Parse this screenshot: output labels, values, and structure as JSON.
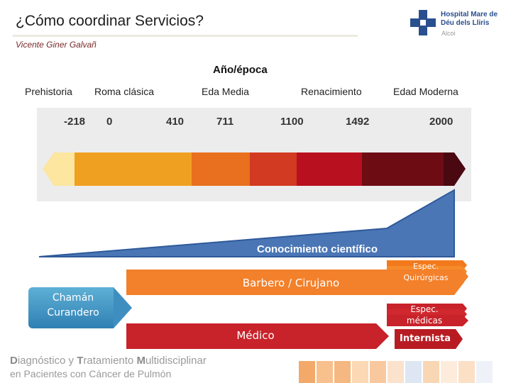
{
  "header": {
    "title": "¿Cómo coordinar Servicios?",
    "author": "Vicente Giner Galvañ"
  },
  "logo": {
    "line1": "Hospital Mare de",
    "line2": "Déu dels Lliris",
    "city": "Alcoi"
  },
  "timeline": {
    "heading": "Año/época",
    "eras": [
      "Prehistoria",
      "Roma clásica",
      "Eda Media",
      "Renacimiento",
      "Edad Moderna"
    ],
    "years": [
      "-218",
      "0",
      "410",
      "711",
      "1100",
      "1492",
      "2000"
    ]
  },
  "knowledge": {
    "label": "Conocimiento científico"
  },
  "roles": {
    "shaman": [
      "Chamán",
      "Curandero"
    ],
    "barber": "Barbero / Cirujano",
    "doctor": "Médico",
    "surgical_specialties": [
      "Espec.",
      "Quirúrgicas"
    ],
    "medical_specialties": [
      "Espec.",
      "médicas"
    ],
    "internist": "Internista"
  },
  "footer": {
    "line1_parts": [
      "D",
      "iagnóstico y ",
      "T",
      "ratamiento ",
      "M",
      "ultidisciplinar"
    ],
    "line2": "en Pacientes con Cáncer de Pulmón"
  },
  "colors": {
    "prehistoria": "#fce6a0",
    "roma": "#f0a020",
    "eda_media": "#e8701e",
    "renacimiento": "#b8101e",
    "moderna": "#6e0c14",
    "knowledge": "#4a76b6",
    "barber": "#f3802a",
    "doctor": "#c8222a",
    "shaman": "#3e8fc0"
  }
}
